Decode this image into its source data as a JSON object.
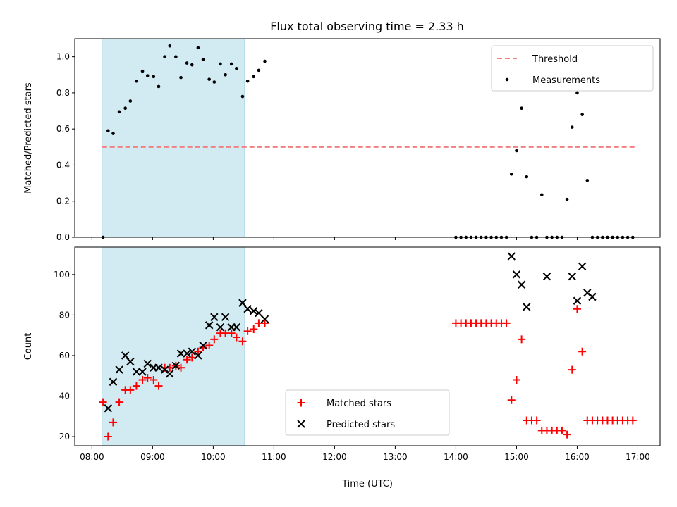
{
  "title": "Flux total observing time = 2.33 h",
  "colors": {
    "shade": "#add8e6",
    "threshold": "#f08080",
    "measurement": "#000000",
    "matched": "#ff0000",
    "predicted": "#000000"
  },
  "chart_data": [
    {
      "type": "scatter",
      "panel": "top",
      "ylabel": "Matched/Predicted stars",
      "xlim": [
        "07:43",
        "17:22"
      ],
      "ylim": [
        0,
        1.1
      ],
      "yticks": [
        "0.0",
        "0.2",
        "0.4",
        "0.6",
        "0.8",
        "1.0"
      ],
      "xticks": [
        "08:00",
        "09:00",
        "10:00",
        "11:00",
        "12:00",
        "13:00",
        "14:00",
        "15:00",
        "16:00",
        "17:00"
      ],
      "xtick_labels_visible": false,
      "shaded_span": [
        "08:10",
        "10:31"
      ],
      "legend": [
        "Threshold",
        "Measurements"
      ],
      "legend_position": "upper right",
      "threshold": {
        "name": "Threshold",
        "y": 0.5,
        "x_range": [
          "08:10",
          "16:58"
        ],
        "style": "dashed"
      },
      "series": [
        {
          "name": "Measurements",
          "marker": "dot",
          "points": [
            [
              "08:11",
              0.0
            ],
            [
              "08:16",
              0.59
            ],
            [
              "08:21",
              0.575
            ],
            [
              "08:27",
              0.695
            ],
            [
              "08:33",
              0.715
            ],
            [
              "08:38",
              0.755
            ],
            [
              "08:44",
              0.865
            ],
            [
              "08:50",
              0.92
            ],
            [
              "08:55",
              0.895
            ],
            [
              "09:01",
              0.89
            ],
            [
              "09:06",
              0.835
            ],
            [
              "09:12",
              1.0
            ],
            [
              "09:17",
              1.06
            ],
            [
              "09:23",
              1.0
            ],
            [
              "09:28",
              0.885
            ],
            [
              "09:34",
              0.965
            ],
            [
              "09:39",
              0.955
            ],
            [
              "09:45",
              1.05
            ],
            [
              "09:50",
              0.985
            ],
            [
              "09:56",
              0.875
            ],
            [
              "10:01",
              0.86
            ],
            [
              "10:07",
              0.96
            ],
            [
              "10:12",
              0.9
            ],
            [
              "10:18",
              0.96
            ],
            [
              "10:23",
              0.935
            ],
            [
              "10:29",
              0.78
            ],
            [
              "10:34",
              0.865
            ],
            [
              "10:40",
              0.89
            ],
            [
              "10:45",
              0.925
            ],
            [
              "10:51",
              0.975
            ],
            [
              "14:00",
              0.0
            ],
            [
              "14:05",
              0.0
            ],
            [
              "14:10",
              0.0
            ],
            [
              "14:15",
              0.0
            ],
            [
              "14:20",
              0.0
            ],
            [
              "14:25",
              0.0
            ],
            [
              "14:30",
              0.0
            ],
            [
              "14:35",
              0.0
            ],
            [
              "14:40",
              0.0
            ],
            [
              "14:45",
              0.0
            ],
            [
              "14:50",
              0.0
            ],
            [
              "14:55",
              0.35
            ],
            [
              "15:00",
              0.48
            ],
            [
              "15:05",
              0.715
            ],
            [
              "15:10",
              0.335
            ],
            [
              "15:15",
              0.0
            ],
            [
              "15:20",
              0.0
            ],
            [
              "15:25",
              0.235
            ],
            [
              "15:30",
              0.0
            ],
            [
              "15:35",
              0.0
            ],
            [
              "15:40",
              0.0
            ],
            [
              "15:45",
              0.0
            ],
            [
              "15:50",
              0.21
            ],
            [
              "15:55",
              0.61
            ],
            [
              "16:00",
              0.8
            ],
            [
              "16:05",
              0.68
            ],
            [
              "16:10",
              0.315
            ],
            [
              "16:15",
              0.0
            ],
            [
              "16:20",
              0.0
            ],
            [
              "16:25",
              0.0
            ],
            [
              "16:30",
              0.0
            ],
            [
              "16:35",
              0.0
            ],
            [
              "16:40",
              0.0
            ],
            [
              "16:45",
              0.0
            ],
            [
              "16:50",
              0.0
            ],
            [
              "16:55",
              0.0
            ]
          ]
        }
      ]
    },
    {
      "type": "scatter",
      "panel": "bottom",
      "xlabel": "Time (UTC)",
      "ylabel": "Count",
      "xlim": [
        "07:43",
        "17:22"
      ],
      "ylim": [
        15.5,
        113.5
      ],
      "yticks": [
        "20",
        "40",
        "60",
        "80",
        "100"
      ],
      "xticks": [
        "08:00",
        "09:00",
        "10:00",
        "11:00",
        "12:00",
        "13:00",
        "14:00",
        "15:00",
        "16:00",
        "17:00"
      ],
      "shaded_span": [
        "08:10",
        "10:31"
      ],
      "legend": [
        "Matched stars",
        "Predicted stars"
      ],
      "legend_position": "lower center",
      "series": [
        {
          "name": "Matched stars",
          "marker": "plus",
          "points": [
            [
              "08:11",
              37
            ],
            [
              "08:16",
              20
            ],
            [
              "08:21",
              27
            ],
            [
              "08:27",
              37
            ],
            [
              "08:33",
              43
            ],
            [
              "08:38",
              43
            ],
            [
              "08:44",
              45
            ],
            [
              "08:50",
              48
            ],
            [
              "08:55",
              49
            ],
            [
              "09:01",
              48
            ],
            [
              "09:06",
              45
            ],
            [
              "09:12",
              54
            ],
            [
              "09:17",
              54
            ],
            [
              "09:23",
              55
            ],
            [
              "09:28",
              54
            ],
            [
              "09:34",
              58
            ],
            [
              "09:39",
              59
            ],
            [
              "09:45",
              62
            ],
            [
              "09:50",
              64
            ],
            [
              "09:56",
              65
            ],
            [
              "10:01",
              68
            ],
            [
              "10:07",
              71
            ],
            [
              "10:12",
              71
            ],
            [
              "10:18",
              71
            ],
            [
              "10:23",
              69
            ],
            [
              "10:29",
              67
            ],
            [
              "10:34",
              72
            ],
            [
              "10:40",
              73
            ],
            [
              "10:45",
              76
            ],
            [
              "10:51",
              76
            ],
            [
              "14:00",
              76
            ],
            [
              "14:05",
              76
            ],
            [
              "14:10",
              76
            ],
            [
              "14:15",
              76
            ],
            [
              "14:20",
              76
            ],
            [
              "14:25",
              76
            ],
            [
              "14:30",
              76
            ],
            [
              "14:35",
              76
            ],
            [
              "14:40",
              76
            ],
            [
              "14:45",
              76
            ],
            [
              "14:50",
              76
            ],
            [
              "14:55",
              38
            ],
            [
              "15:00",
              48
            ],
            [
              "15:05",
              68
            ],
            [
              "15:10",
              28
            ],
            [
              "15:15",
              28
            ],
            [
              "15:20",
              28
            ],
            [
              "15:25",
              23
            ],
            [
              "15:30",
              23
            ],
            [
              "15:35",
              23
            ],
            [
              "15:40",
              23
            ],
            [
              "15:45",
              23
            ],
            [
              "15:50",
              21
            ],
            [
              "15:55",
              53
            ],
            [
              "16:00",
              83
            ],
            [
              "16:05",
              62
            ],
            [
              "16:10",
              28
            ],
            [
              "16:15",
              28
            ],
            [
              "16:20",
              28
            ],
            [
              "16:25",
              28
            ],
            [
              "16:30",
              28
            ],
            [
              "16:35",
              28
            ],
            [
              "16:40",
              28
            ],
            [
              "16:45",
              28
            ],
            [
              "16:50",
              28
            ],
            [
              "16:55",
              28
            ]
          ]
        },
        {
          "name": "Predicted stars",
          "marker": "x",
          "points": [
            [
              "08:16",
              34
            ],
            [
              "08:21",
              47
            ],
            [
              "08:27",
              53
            ],
            [
              "08:33",
              60
            ],
            [
              "08:38",
              57
            ],
            [
              "08:44",
              52
            ],
            [
              "08:50",
              52
            ],
            [
              "08:55",
              56
            ],
            [
              "09:01",
              54
            ],
            [
              "09:06",
              54
            ],
            [
              "09:12",
              53
            ],
            [
              "09:17",
              51
            ],
            [
              "09:23",
              55
            ],
            [
              "09:28",
              61
            ],
            [
              "09:34",
              61
            ],
            [
              "09:39",
              62
            ],
            [
              "09:45",
              60
            ],
            [
              "09:50",
              65
            ],
            [
              "09:56",
              75
            ],
            [
              "10:01",
              79
            ],
            [
              "10:07",
              74
            ],
            [
              "10:12",
              79
            ],
            [
              "10:18",
              74
            ],
            [
              "10:23",
              74
            ],
            [
              "10:29",
              86
            ],
            [
              "10:34",
              83
            ],
            [
              "10:40",
              82
            ],
            [
              "10:45",
              81
            ],
            [
              "10:51",
              78
            ],
            [
              "14:55",
              109
            ],
            [
              "15:00",
              100
            ],
            [
              "15:05",
              95
            ],
            [
              "15:10",
              84
            ],
            [
              "15:30",
              99
            ],
            [
              "15:55",
              99
            ],
            [
              "16:00",
              87
            ],
            [
              "16:05",
              104
            ],
            [
              "16:10",
              91
            ],
            [
              "16:15",
              89
            ]
          ]
        }
      ]
    }
  ]
}
